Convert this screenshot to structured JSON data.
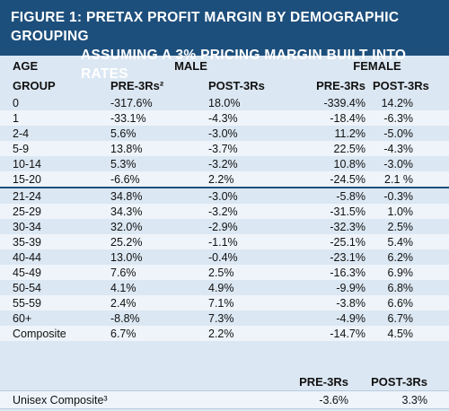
{
  "title": [
    "FIGURE 1: PRETAX PROFIT MARGIN BY DEMOGRAPHIC GROUPING",
    "ASSUMING A 3% PRICING MARGIN BUILT INTO RATES"
  ],
  "header": {
    "age": [
      "AGE",
      "GROUP"
    ],
    "male": "MALE",
    "female": "FEMALE",
    "columns": [
      "PRE-3Rs²",
      "POST-3Rs",
      "PRE-3Rs",
      "POST-3Rs"
    ]
  },
  "rows": [
    [
      "0",
      "-317.6%",
      "18.0%",
      "-339.4%",
      "14.2%"
    ],
    [
      "1",
      "-33.1%",
      "-4.3%",
      "-18.4%",
      "-6.3%"
    ],
    [
      "2-4",
      "5.6%",
      "-3.0%",
      "11.2%",
      "-5.0%"
    ],
    [
      "5-9",
      "13.8%",
      "-3.7%",
      "22.5%",
      "-4.3%"
    ],
    [
      "10-14",
      "5.3%",
      "-3.2%",
      "10.8%",
      "-3.0%"
    ],
    [
      "15-20",
      "-6.6%",
      "2.2%",
      "-24.5%",
      "2.1 %"
    ],
    [
      "21-24",
      "34.8%",
      "-3.0%",
      "-5.8%",
      "-0.3%"
    ],
    [
      "25-29",
      "34.3%",
      "-3.2%",
      "-31.5%",
      "1.0%"
    ],
    [
      "30-34",
      "32.0%",
      "-2.9%",
      "-32.3%",
      "2.5%"
    ],
    [
      "35-39",
      "25.2%",
      "-1.1%",
      "-25.1%",
      "5.4%"
    ],
    [
      "40-44",
      "13.0%",
      "-0.4%",
      "-23.1%",
      "6.2%"
    ],
    [
      "45-49",
      "7.6%",
      "2.5%",
      "-16.3%",
      "6.9%"
    ],
    [
      "50-54",
      "4.1%",
      "4.9%",
      "-9.9%",
      "6.8%"
    ],
    [
      "55-59",
      "2.4%",
      "7.1%",
      "-3.8%",
      "6.6%"
    ],
    [
      "60+",
      "-8.8%",
      "7.3%",
      "-4.9%",
      "6.7%"
    ],
    [
      "Composite",
      "6.7%",
      "2.2%",
      "-14.7%",
      "4.5%"
    ]
  ],
  "unisex": {
    "columns": [
      "PRE-3Rs",
      "POST-3Rs"
    ],
    "label": "Unisex Composite³",
    "values": [
      "-3.6%",
      "3.3%"
    ]
  }
}
